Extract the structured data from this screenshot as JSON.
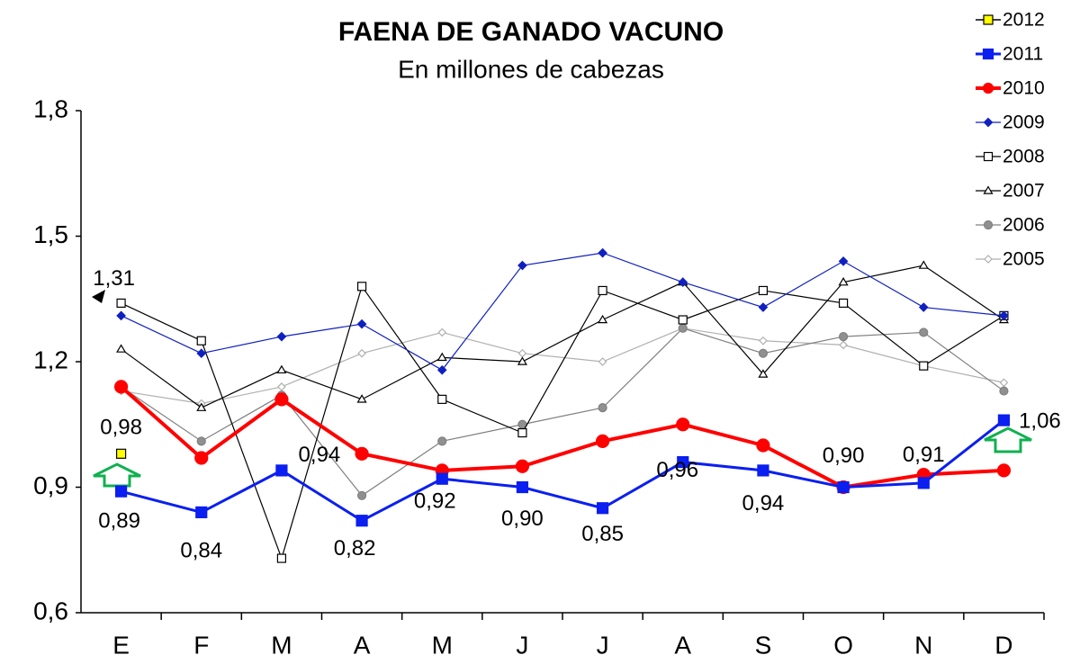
{
  "chart_data": {
    "type": "line",
    "title": "FAENA DE GANADO VACUNO",
    "subtitle": "En millones de cabezas",
    "categories": [
      "E",
      "F",
      "M",
      "A",
      "M",
      "J",
      "J",
      "A",
      "S",
      "O",
      "N",
      "D"
    ],
    "ylim": [
      0.6,
      1.8
    ],
    "yticks": [
      {
        "value": 0.6,
        "label": "0,6"
      },
      {
        "value": 0.9,
        "label": "0,9"
      },
      {
        "value": 1.2,
        "label": "1,2"
      },
      {
        "value": 1.5,
        "label": "1,5"
      },
      {
        "value": 1.8,
        "label": "1,8"
      }
    ],
    "grid": false,
    "legend": "top-right",
    "series": [
      {
        "name": "2012",
        "color": "#000000",
        "marker": "square",
        "fill": "#ffff00",
        "values": [
          0.98,
          null,
          null,
          null,
          null,
          null,
          null,
          null,
          null,
          null,
          null,
          null
        ],
        "value_labels": [
          "0,98",
          null,
          null,
          null,
          null,
          null,
          null,
          null,
          null,
          null,
          null,
          null
        ]
      },
      {
        "name": "2011",
        "color": "#0a1ff0",
        "marker": "square",
        "fill": "#0a1ff0",
        "values": [
          0.89,
          0.84,
          0.94,
          0.82,
          0.92,
          0.9,
          0.85,
          0.96,
          0.94,
          0.9,
          0.91,
          1.06
        ],
        "value_labels": [
          "0,89",
          "0,84",
          "0,94",
          "0,82",
          "0,92",
          "0,90",
          "0,85",
          "0,96",
          "0,94",
          "0,90",
          "0,91",
          "1,06"
        ]
      },
      {
        "name": "2010",
        "color": "#ff0000",
        "marker": "circle",
        "fill": "#ff0000",
        "values": [
          1.14,
          0.97,
          1.11,
          0.98,
          0.94,
          0.95,
          1.01,
          1.05,
          1.0,
          0.9,
          0.93,
          0.94
        ]
      },
      {
        "name": "2009",
        "color": "#1020c0",
        "marker": "diamond",
        "fill": "#1020c0",
        "values": [
          1.31,
          1.22,
          1.26,
          1.29,
          1.18,
          1.43,
          1.46,
          1.39,
          1.33,
          1.44,
          1.33,
          1.31
        ],
        "value_labels": [
          "1,31",
          null,
          null,
          null,
          null,
          null,
          null,
          null,
          null,
          null,
          null,
          null
        ]
      },
      {
        "name": "2008",
        "color": "#000000",
        "marker": "square",
        "fill": "#ffffff",
        "values": [
          1.34,
          1.25,
          0.73,
          1.38,
          1.11,
          1.03,
          1.37,
          1.3,
          1.37,
          1.34,
          1.19,
          1.31
        ]
      },
      {
        "name": "2007",
        "color": "#000000",
        "marker": "triangle",
        "fill": "#ffffff",
        "values": [
          1.23,
          1.09,
          1.18,
          1.11,
          1.21,
          1.2,
          1.3,
          1.39,
          1.17,
          1.39,
          1.43,
          1.3
        ]
      },
      {
        "name": "2006",
        "color": "#808080",
        "marker": "circle",
        "fill": "#909090",
        "values": [
          1.14,
          1.01,
          1.12,
          0.88,
          1.01,
          1.05,
          1.09,
          1.28,
          1.22,
          1.26,
          1.27,
          1.13
        ]
      },
      {
        "name": "2005",
        "color": "#b0b0b0",
        "marker": "diamond",
        "fill": "#ffffff",
        "values": [
          1.13,
          1.1,
          1.14,
          1.22,
          1.27,
          1.22,
          1.2,
          1.28,
          1.25,
          1.24,
          1.19,
          1.15
        ]
      }
    ]
  }
}
